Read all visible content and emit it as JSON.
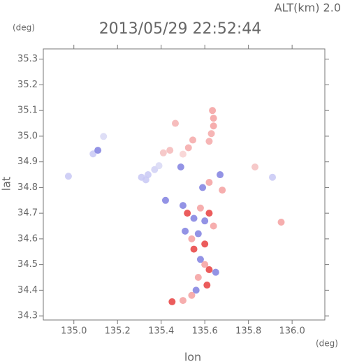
{
  "chart_data": {
    "type": "scatter",
    "title": "2013/05/29 22:52:44",
    "subtitle": "ALT(km) 2.0",
    "x_label": "lon",
    "y_label": "lat",
    "x_unit": "(deg)",
    "y_unit": "(deg)",
    "xlim": [
      134.86,
      136.15
    ],
    "ylim": [
      34.284,
      35.34
    ],
    "xticks": [
      {
        "value": 135.0,
        "label": "135.0"
      },
      135.2,
      135.4,
      135.6,
      135.8,
      {
        "value": 136.0,
        "label": "136.0"
      }
    ],
    "yticks": [
      35.3,
      35.2,
      35.1,
      {
        "value": 35.0,
        "label": "35.0"
      },
      34.9,
      34.8,
      34.7,
      34.6,
      34.5,
      34.4,
      34.3
    ],
    "x": [
      134.975,
      135.088,
      135.11,
      135.136,
      135.31,
      135.34,
      135.37,
      135.33,
      135.39,
      135.41,
      135.44,
      135.525,
      135.545,
      135.5,
      135.465,
      135.635,
      135.64,
      135.64,
      135.63,
      135.62,
      135.49,
      135.59,
      135.62,
      135.67,
      135.68,
      135.42,
      135.5,
      135.52,
      135.55,
      135.58,
      135.6,
      135.62,
      135.64,
      135.51,
      135.54,
      135.57,
      135.6,
      135.55,
      135.58,
      135.6,
      135.62,
      135.65,
      135.57,
      135.61,
      135.56,
      135.54,
      135.45,
      135.5,
      135.95,
      135.91,
      135.83
    ],
    "y": [
      34.844,
      34.931,
      34.945,
      34.999,
      34.84,
      34.85,
      34.87,
      34.83,
      34.885,
      34.935,
      34.945,
      34.955,
      34.985,
      34.93,
      35.05,
      35.1,
      35.07,
      35.04,
      35.01,
      34.98,
      34.88,
      34.8,
      34.82,
      34.85,
      34.79,
      34.75,
      34.73,
      34.7,
      34.68,
      34.72,
      34.67,
      34.7,
      34.65,
      34.63,
      34.6,
      34.62,
      34.58,
      34.56,
      34.52,
      34.5,
      34.48,
      34.47,
      34.45,
      34.42,
      34.4,
      34.38,
      34.355,
      34.36,
      34.665,
      34.84,
      34.88
    ],
    "colors": [
      "#c8c8f4",
      "#c8c8f4",
      "#8080e0",
      "#d8d8f4",
      "#c8c8f4",
      "#c8c8f4",
      "#d0d0f4",
      "#c8c8f4",
      "#d8d8f4",
      "#f4c0c0",
      "#f4b8b8",
      "#f4a8a8",
      "#f4a8a8",
      "#f8d0d0",
      "#f4b0b0",
      "#f4a0a0",
      "#f4a0a0",
      "#f4a0a0",
      "#f4a8a8",
      "#f4a8a8",
      "#8080e0",
      "#8080e0",
      "#f4a0a0",
      "#8080e0",
      "#f4a0a0",
      "#8080e0",
      "#8080e0",
      "#e84040",
      "#8080e0",
      "#f4a0a0",
      "#8080e0",
      "#e84040",
      "#f4a0a0",
      "#8080e0",
      "#f4a0a0",
      "#8080e0",
      "#e84040",
      "#e84040",
      "#8080e0",
      "#f4a0a0",
      "#e84040",
      "#8080e0",
      "#f4a0a0",
      "#e84040",
      "#8080e0",
      "#f4a0a0",
      "#e84040",
      "#f4a0a0",
      "#f4a0a0",
      "#c8c8f4",
      "#f4c0c0"
    ]
  }
}
